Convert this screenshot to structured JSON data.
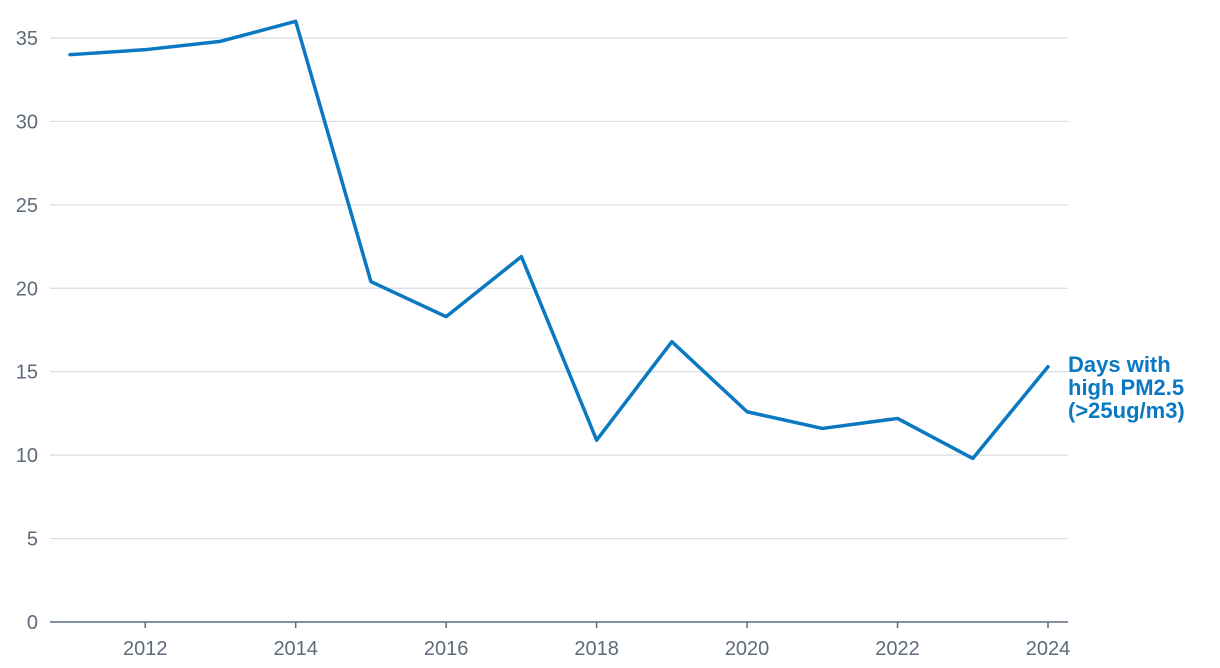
{
  "chart_data": {
    "type": "line",
    "title": "",
    "xlabel": "",
    "ylabel": "",
    "x": [
      2011,
      2012,
      2013,
      2014,
      2015,
      2016,
      2017,
      2018,
      2019,
      2020,
      2021,
      2022,
      2023,
      2024
    ],
    "series": [
      {
        "name": "Days with high PM2.5 (>25ug/m3)",
        "name_lines": [
          "Days with",
          "high PM2.5",
          "(>25ug/m3)"
        ],
        "values": [
          34.0,
          34.3,
          34.8,
          36.0,
          20.4,
          18.3,
          21.9,
          10.9,
          16.8,
          12.6,
          11.6,
          12.2,
          9.8,
          15.3
        ],
        "color": "#0a79c2"
      }
    ],
    "xlim": [
      2011,
      2024
    ],
    "ylim": [
      0,
      35
    ],
    "xticks": [
      "2012",
      "2014",
      "2016",
      "2018",
      "2020",
      "2022",
      "2024"
    ],
    "yticks": [
      "0",
      "5",
      "10",
      "15",
      "20",
      "25",
      "30",
      "35"
    ],
    "grid": "horizontal",
    "legend": "label at line end",
    "colors": {
      "grid": "#d8dce6",
      "axis": "#5f6b7a",
      "tick_text": "#5f6b7a"
    }
  }
}
